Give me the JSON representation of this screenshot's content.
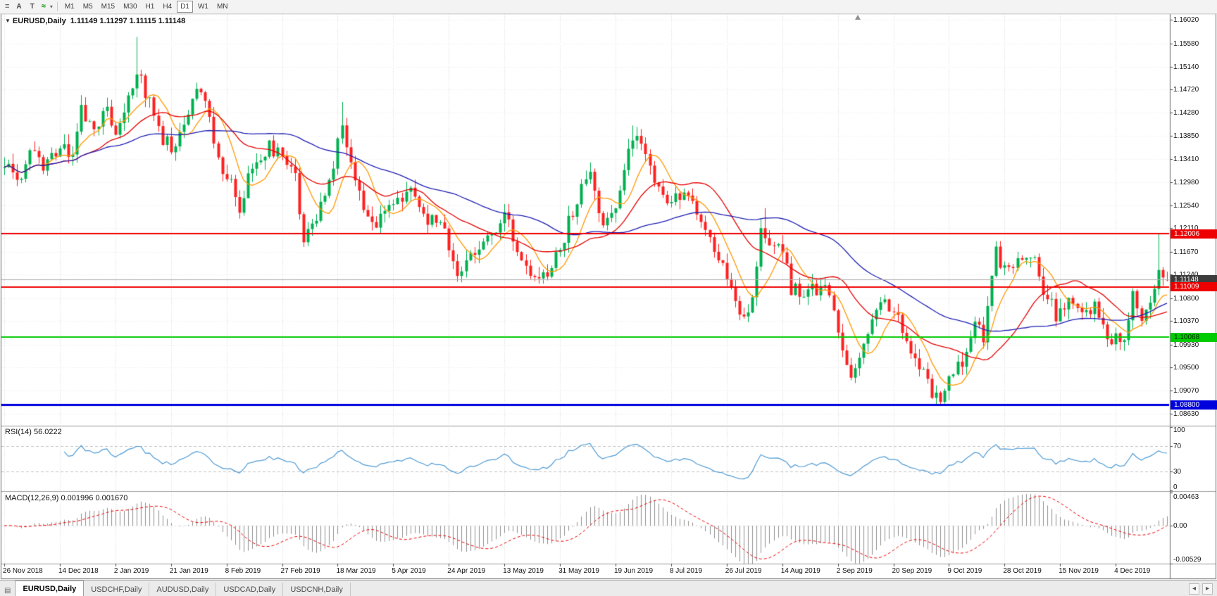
{
  "toolbar": {
    "buttons": [
      {
        "name": "menu-icon",
        "glyph": "≡"
      },
      {
        "name": "letter-a-button",
        "label": "A"
      },
      {
        "name": "letter-t-button",
        "label": "T"
      },
      {
        "name": "indicator-line-icon",
        "glyph": "≈"
      },
      {
        "name": "dropdown-arrow-icon",
        "glyph": "▾"
      }
    ],
    "timeframes": [
      "M1",
      "M5",
      "M15",
      "M30",
      "H1",
      "H4",
      "D1",
      "W1",
      "MN"
    ],
    "active_timeframe": "D1"
  },
  "chart_header": {
    "collapse_glyph": "▼",
    "symbol": "EURUSD,Daily",
    "open": "1.11149",
    "high": "1.11297",
    "low": "1.11115",
    "close": "1.11148"
  },
  "price_axis": {
    "ticks": [
      "1.16020",
      "1.15580",
      "1.15140",
      "1.14720",
      "1.14280",
      "1.13850",
      "1.13410",
      "1.12980",
      "1.12540",
      "1.12110",
      "1.11670",
      "1.11240",
      "1.10800",
      "1.10370",
      "1.09930",
      "1.09500",
      "1.09070",
      "1.08630"
    ]
  },
  "price_tags": [
    {
      "name": "resistance-line-tag",
      "value": "1.12006",
      "price": 1.12006,
      "bg": "#ee0000",
      "fg": "#ffffff"
    },
    {
      "name": "current-price-tag",
      "value": "1.11148",
      "price": 1.11148,
      "bg": "#3c3c3c",
      "fg": "#ffffff"
    },
    {
      "name": "support-line-tag",
      "value": "1.11009",
      "price": 1.11009,
      "bg": "#ee0000",
      "fg": "#ffffff"
    },
    {
      "name": "support-line-green-tag",
      "value": "1.10068",
      "price": 1.10068,
      "bg": "#00cc00",
      "fg": "#002b00"
    },
    {
      "name": "support-line-blue-tag",
      "value": "1.08800",
      "price": 1.088,
      "bg": "#0000dd",
      "fg": "#ffffff"
    }
  ],
  "rsi": {
    "name": "RSI(14)",
    "value": "56.0222",
    "axis": [
      "100",
      "70",
      "30",
      "0"
    ],
    "levels": [
      70,
      30
    ],
    "line_color": "#4f9bd5"
  },
  "macd": {
    "name": "MACD(12,26,9)",
    "main_value": "0.001996",
    "signal_value": "0.001670",
    "axis": [
      {
        "label": "0.00463",
        "value": 0.00463
      },
      {
        "label": "0.00",
        "value": 0
      },
      {
        "label": "-0.00529",
        "value": -0.00529
      }
    ],
    "hist_color": "#8f8f8f",
    "signal_color": "#ee0000"
  },
  "tabs": {
    "strip_icon_glyph": "▤",
    "items": [
      "EURUSD,Daily",
      "USDCHF,Daily",
      "AUDUSD,Daily",
      "USDCAD,Daily",
      "USDCNH,Daily"
    ],
    "active": "EURUSD,Daily",
    "scroll_left_glyph": "◂",
    "scroll_right_glyph": "▸"
  },
  "chart_data": {
    "type": "candlestick",
    "symbol": "EURUSD",
    "timeframe": "Daily",
    "title": "EURUSD,Daily",
    "ohlc_readout": {
      "open": 1.11149,
      "high": 1.11297,
      "low": 1.11115,
      "close": 1.11148
    },
    "ylim": [
      1.0842,
      1.1613
    ],
    "macd_range": [
      -0.00529,
      0.00463
    ],
    "candle_count": 273,
    "candles_per_tick": 13,
    "x_tick_labels": [
      "26 Nov 2018",
      "14 Dec 2018",
      "2 Jan 2019",
      "21 Jan 2019",
      "8 Feb 2019",
      "27 Feb 2019",
      "18 Mar 2019",
      "5 Apr 2019",
      "24 Apr 2019",
      "13 May 2019",
      "31 May 2019",
      "19 Jun 2019",
      "8 Jul 2019",
      "26 Jul 2019",
      "14 Aug 2019",
      "2 Sep 2019",
      "20 Sep 2019",
      "9 Oct 2019",
      "28 Oct 2019",
      "15 Nov 2019",
      "4 Dec 2019"
    ],
    "up_color": "#00b050",
    "down_color": "#fe2020",
    "close_anchors": [
      [
        0,
        1.133
      ],
      [
        3,
        1.1295
      ],
      [
        6,
        1.136
      ],
      [
        9,
        1.133
      ],
      [
        13,
        1.1362
      ],
      [
        16,
        1.1345
      ],
      [
        18,
        1.143
      ],
      [
        21,
        1.139
      ],
      [
        24,
        1.145
      ],
      [
        26,
        1.1385
      ],
      [
        28,
        1.144
      ],
      [
        31,
        1.15
      ],
      [
        33,
        1.147
      ],
      [
        36,
        1.139
      ],
      [
        39,
        1.136
      ],
      [
        42,
        1.1415
      ],
      [
        45,
        1.148
      ],
      [
        48,
        1.143
      ],
      [
        50,
        1.134
      ],
      [
        53,
        1.13
      ],
      [
        55,
        1.125
      ],
      [
        58,
        1.133
      ],
      [
        62,
        1.1365
      ],
      [
        65,
        1.134
      ],
      [
        68,
        1.13
      ],
      [
        70,
        1.1195
      ],
      [
        73,
        1.124
      ],
      [
        76,
        1.13
      ],
      [
        79,
        1.141
      ],
      [
        82,
        1.13
      ],
      [
        85,
        1.122
      ],
      [
        88,
        1.123
      ],
      [
        91,
        1.125
      ],
      [
        95,
        1.1285
      ],
      [
        99,
        1.123
      ],
      [
        103,
        1.121
      ],
      [
        106,
        1.112
      ],
      [
        108,
        1.1155
      ],
      [
        110,
        1.1175
      ],
      [
        113,
        1.12
      ],
      [
        117,
        1.123
      ],
      [
        120,
        1.118
      ],
      [
        123,
        1.113
      ],
      [
        125,
        1.1115
      ],
      [
        128,
        1.114
      ],
      [
        130,
        1.117
      ],
      [
        134,
        1.127
      ],
      [
        137,
        1.131
      ],
      [
        140,
        1.1215
      ],
      [
        143,
        1.125
      ],
      [
        147,
        1.139
      ],
      [
        149,
        1.137
      ],
      [
        152,
        1.129
      ],
      [
        155,
        1.125
      ],
      [
        158,
        1.127
      ],
      [
        160,
        1.1265
      ],
      [
        163,
        1.122
      ],
      [
        166,
        1.118
      ],
      [
        168,
        1.114
      ],
      [
        171,
        1.108
      ],
      [
        173,
        1.1035
      ],
      [
        175,
        1.108
      ],
      [
        177,
        1.1215
      ],
      [
        180,
        1.118
      ],
      [
        182,
        1.117
      ],
      [
        184,
        1.11
      ],
      [
        186,
        1.109
      ],
      [
        189,
        1.11
      ],
      [
        192,
        1.11
      ],
      [
        194,
        1.105
      ],
      [
        196,
        1.098
      ],
      [
        198,
        1.093
      ],
      [
        200,
        1.097
      ],
      [
        203,
        1.104
      ],
      [
        206,
        1.107
      ],
      [
        209,
        1.104
      ],
      [
        212,
        1.099
      ],
      [
        215,
        1.094
      ],
      [
        217,
        1.09
      ],
      [
        219,
        1.0895
      ],
      [
        221,
        1.093
      ],
      [
        224,
        1.096
      ],
      [
        227,
        1.104
      ],
      [
        229,
        1.1
      ],
      [
        232,
        1.117
      ],
      [
        234,
        1.113
      ],
      [
        236,
        1.1125
      ],
      [
        238,
        1.116
      ],
      [
        241,
        1.1152
      ],
      [
        243,
        1.11
      ],
      [
        246,
        1.105
      ],
      [
        249,
        1.107
      ],
      [
        252,
        1.105
      ],
      [
        255,
        1.106
      ],
      [
        257,
        1.102
      ],
      [
        259,
        1.1005
      ],
      [
        262,
        1.099
      ],
      [
        264,
        1.108
      ],
      [
        266,
        1.105
      ],
      [
        268,
        1.107
      ],
      [
        270,
        1.1135
      ],
      [
        271,
        1.1125
      ],
      [
        272,
        1.11148
      ]
    ],
    "special_candles": {
      "31": {
        "h": 1.157
      },
      "70": {
        "l": 1.1176
      },
      "79": {
        "h": 1.1448
      },
      "106": {
        "l": 1.1111
      },
      "125": {
        "l": 1.1107
      },
      "147": {
        "h": 1.1404
      },
      "178": {
        "h": 1.1249
      },
      "198": {
        "l": 1.0926
      },
      "219": {
        "l": 1.0879
      },
      "262": {
        "l": 1.0981
      },
      "270": {
        "h": 1.12006
      },
      "272": {
        "o": 1.11149,
        "h": 1.11297,
        "l": 1.11115,
        "c": 1.11148
      }
    },
    "synthesis": {
      "seed": 20190101,
      "noise": 0.0015,
      "wick": 0.0019
    },
    "moving_averages": [
      {
        "period": 8,
        "color": "#ff9900"
      },
      {
        "period": 21,
        "color": "#e60000"
      },
      {
        "period": 50,
        "color": "#1e1eb4"
      }
    ],
    "horizontal_lines": [
      {
        "price": 1.12006,
        "color": "#ee0000",
        "width": 2
      },
      {
        "price": 1.11009,
        "color": "#ee0000",
        "width": 2
      },
      {
        "price": 1.10068,
        "color": "#00cc00",
        "width": 2
      },
      {
        "price": 1.088,
        "color": "#0000dd",
        "width": 3
      }
    ],
    "current_price_line": {
      "price": 1.11148,
      "color": "#b0b0b0"
    },
    "indicators": {
      "rsi": {
        "period": 14,
        "last": 56.0222
      },
      "macd": {
        "fast": 12,
        "slow": 26,
        "signal": 9,
        "last_main": 0.001996,
        "last_signal": 0.00167
      }
    }
  }
}
